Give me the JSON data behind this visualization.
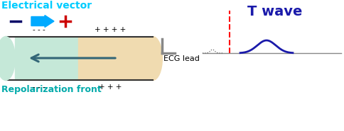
{
  "title": "Electrical vector",
  "title_color": "#00ccff",
  "subtitle": "Repolarization front",
  "subtitle_color": "#00aaaa",
  "twave_label": "T wave",
  "twave_color": "#1a1aaa",
  "ecg_lead_label": "ECG lead",
  "bg_color": "#ffffff",
  "arrow_color": "#00aaff",
  "cylinder_left_color": "#c5e8d8",
  "cylinder_right_color": "#f0dbb0",
  "cylinder_border": "#333333",
  "vector_arrow_color": "#336677",
  "dashed_line_color": "#ff0000",
  "ecg_line_color": "#888888",
  "twave_signal_color": "#1a1aaa",
  "small_signal_color": "#666666",
  "neg_circle_color": "#000066",
  "pos_circle_color": "#cc0000"
}
